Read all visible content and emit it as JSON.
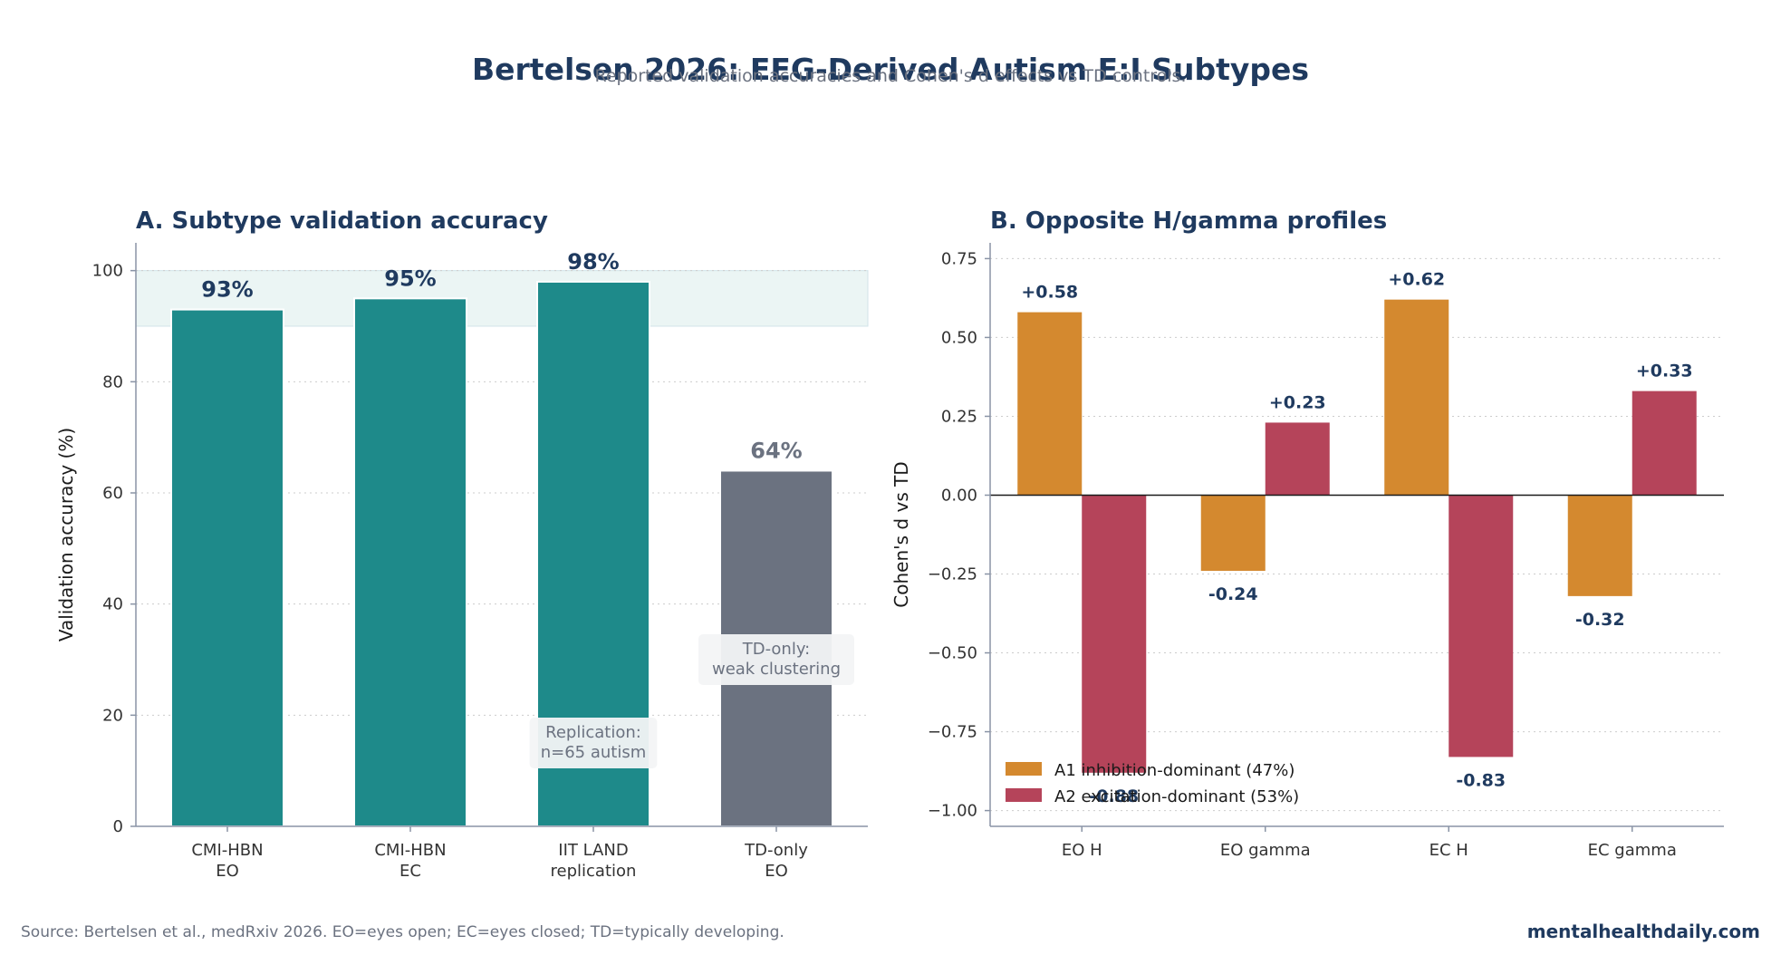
{
  "header": {
    "title": "Bertelsen 2026: EEG-Derived Autism E:I Subtypes",
    "subtitle": "Reported validation accuracies and Cohen's d effects vs TD controls."
  },
  "footer": {
    "source": "Source: Bertelsen et al., medRxiv 2026. EO=eyes open; EC=eyes closed; TD=typically developing.",
    "brand": "mentalhealthdaily.com"
  },
  "chart_data": [
    {
      "type": "bar",
      "title": "A. Subtype validation accuracy",
      "ylabel": "Validation accuracy (%)",
      "xlabel": "",
      "ylim": [
        0,
        105
      ],
      "yticks": [
        0,
        20,
        40,
        60,
        80,
        100
      ],
      "highlight_band": [
        90,
        100
      ],
      "categories": [
        [
          "CMI-HBN",
          "EO"
        ],
        [
          "CMI-HBN",
          "EC"
        ],
        [
          "IIT LAND",
          "replication"
        ],
        [
          "TD-only",
          "EO"
        ]
      ],
      "values": [
        93,
        95,
        98,
        64
      ],
      "value_labels": [
        "93%",
        "95%",
        "98%",
        "64%"
      ],
      "bar_colors": [
        "#1e8a8a",
        "#1e8a8a",
        "#1e8a8a",
        "#6b7280"
      ],
      "label_colors": [
        "#1f3a5f",
        "#1f3a5f",
        "#1f3a5f",
        "#6b7280"
      ],
      "annotations": [
        {
          "category_index": 2,
          "y": 15,
          "lines": [
            "Replication:",
            "n=65 autism"
          ]
        },
        {
          "category_index": 3,
          "y": 30,
          "lines": [
            "TD-only:",
            "weak clustering"
          ]
        }
      ],
      "grid": true
    },
    {
      "type": "bar",
      "title": "B. Opposite H/gamma profiles",
      "ylabel": "Cohen's d vs TD",
      "xlabel": "",
      "ylim": [
        -1.05,
        0.8
      ],
      "yticks": [
        0.75,
        0.5,
        0.25,
        0.0,
        -0.25,
        -0.5,
        -0.75,
        -1.0
      ],
      "ytick_labels": [
        "0.75",
        "0.50",
        "0.25",
        "0.00",
        "−0.25",
        "−0.50",
        "−0.75",
        "−1.00"
      ],
      "categories": [
        "EO H",
        "EO gamma",
        "EC H",
        "EC gamma"
      ],
      "series": [
        {
          "name": "A1 inhibition-dominant (47%)",
          "color": "#d4892f",
          "values": [
            0.58,
            -0.24,
            0.62,
            -0.32
          ],
          "labels": [
            "+0.58",
            "-0.24",
            "+0.62",
            "-0.32"
          ]
        },
        {
          "name": "A2 excitation-dominant (53%)",
          "color": "#b5445a",
          "values": [
            -0.88,
            0.23,
            -0.83,
            0.33
          ],
          "labels": [
            "-0.88",
            "+0.23",
            "-0.83",
            "+0.33"
          ]
        }
      ],
      "legend": "lower-left",
      "grid": true
    }
  ]
}
